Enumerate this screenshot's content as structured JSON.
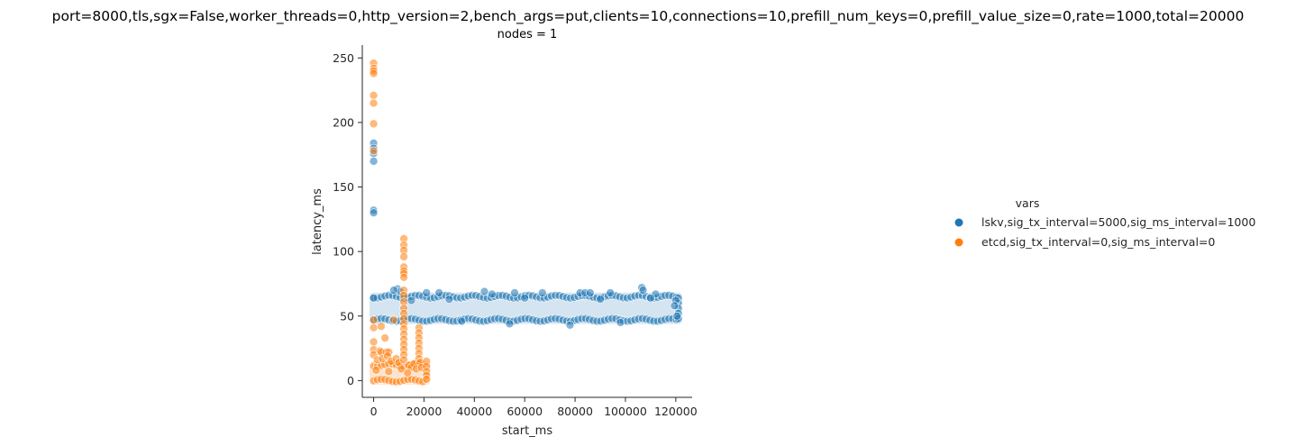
{
  "chart_data": {
    "type": "scatter",
    "title": "port=8000,tls,sgx=False,worker_threads=0,http_version=2,bench_args=put,clients=10,connections=10,prefill_num_keys=0,prefill_value_size=0,rate=1000,total=20000",
    "subtitle": "nodes = 1",
    "xlabel": "start_ms",
    "ylabel": "latency_ms",
    "xlim": [
      -4500,
      126500
    ],
    "ylim": [
      -13,
      260
    ],
    "xticks": [
      0,
      20000,
      40000,
      60000,
      80000,
      100000,
      120000
    ],
    "yticks": [
      0,
      50,
      100,
      150,
      200,
      250
    ],
    "grid": false,
    "legend": {
      "title": "vars",
      "placement": "right"
    },
    "series": [
      {
        "name": "lskv,sig_tx_interval=5000,sig_ms_interval=1000",
        "color": "#1f77b4",
        "band": {
          "x_start": 0,
          "x_end": 121000,
          "y_low": 47,
          "y_high": 65
        },
        "points": [
          [
            0,
            184
          ],
          [
            0,
            180
          ],
          [
            0,
            176
          ],
          [
            0,
            170
          ],
          [
            0,
            132
          ],
          [
            0,
            130
          ],
          [
            9500,
            71
          ],
          [
            10500,
            69
          ],
          [
            8000,
            70
          ],
          [
            21000,
            68
          ],
          [
            26000,
            68
          ],
          [
            44000,
            69
          ],
          [
            47000,
            67
          ],
          [
            56000,
            68
          ],
          [
            67000,
            68
          ],
          [
            82000,
            68
          ],
          [
            84000,
            68
          ],
          [
            86000,
            68
          ],
          [
            94000,
            68
          ],
          [
            106500,
            72
          ],
          [
            107000,
            70
          ],
          [
            112000,
            67
          ],
          [
            0,
            64
          ],
          [
            15000,
            62
          ],
          [
            30000,
            63
          ],
          [
            60000,
            64
          ],
          [
            90000,
            63
          ],
          [
            110000,
            64
          ],
          [
            121000,
            64
          ],
          [
            121000,
            60
          ],
          [
            121000,
            56
          ],
          [
            121000,
            52
          ],
          [
            121000,
            48
          ],
          [
            54000,
            44
          ],
          [
            78000,
            43
          ],
          [
            35000,
            46
          ],
          [
            98000,
            45
          ],
          [
            120000,
            62
          ],
          [
            119500,
            58
          ],
          [
            120500,
            50
          ]
        ]
      },
      {
        "name": "etcd,sig_tx_interval=0,sig_ms_interval=0",
        "color": "#ff7f0e",
        "band": {
          "x_start": 0,
          "x_end": 21000,
          "y_low": 0,
          "y_high": 12
        },
        "points": [
          [
            0,
            246
          ],
          [
            0,
            242
          ],
          [
            0,
            240
          ],
          [
            0,
            238
          ],
          [
            0,
            221
          ],
          [
            0,
            215
          ],
          [
            0,
            199
          ],
          [
            0,
            178
          ],
          [
            0,
            47
          ],
          [
            0,
            41
          ],
          [
            0,
            30
          ],
          [
            0,
            24
          ],
          [
            0,
            20
          ],
          [
            2500,
            23
          ],
          [
            3000,
            22
          ],
          [
            5000,
            22
          ],
          [
            6000,
            22
          ],
          [
            4500,
            33
          ],
          [
            3000,
            42
          ],
          [
            8000,
            47
          ],
          [
            1500,
            16
          ],
          [
            3500,
            17
          ],
          [
            5500,
            19
          ],
          [
            7000,
            15
          ],
          [
            9000,
            17
          ],
          [
            10000,
            14
          ],
          [
            12000,
            110
          ],
          [
            12000,
            105
          ],
          [
            12000,
            101
          ],
          [
            12000,
            96
          ],
          [
            12000,
            88
          ],
          [
            12000,
            85
          ],
          [
            12000,
            83
          ],
          [
            12000,
            80
          ],
          [
            12000,
            70
          ],
          [
            12000,
            66
          ],
          [
            12000,
            61
          ],
          [
            12000,
            56
          ],
          [
            12000,
            52
          ],
          [
            12000,
            48
          ],
          [
            12000,
            44
          ],
          [
            12000,
            40
          ],
          [
            12000,
            36
          ],
          [
            12000,
            32
          ],
          [
            12000,
            28
          ],
          [
            12000,
            24
          ],
          [
            12000,
            20
          ],
          [
            12000,
            16
          ],
          [
            14000,
            12
          ],
          [
            15000,
            10
          ],
          [
            16000,
            13
          ],
          [
            17000,
            9
          ],
          [
            18000,
            41
          ],
          [
            18000,
            37
          ],
          [
            18000,
            33
          ],
          [
            18000,
            29
          ],
          [
            18000,
            25
          ],
          [
            18000,
            21
          ],
          [
            18000,
            17
          ],
          [
            18500,
            14
          ],
          [
            19000,
            10
          ],
          [
            21000,
            15
          ],
          [
            21000,
            11
          ],
          [
            21000,
            7
          ],
          [
            21000,
            4
          ],
          [
            21000,
            1
          ],
          [
            1000,
            8
          ],
          [
            6000,
            7
          ],
          [
            11000,
            9
          ],
          [
            13500,
            6
          ]
        ]
      }
    ]
  }
}
